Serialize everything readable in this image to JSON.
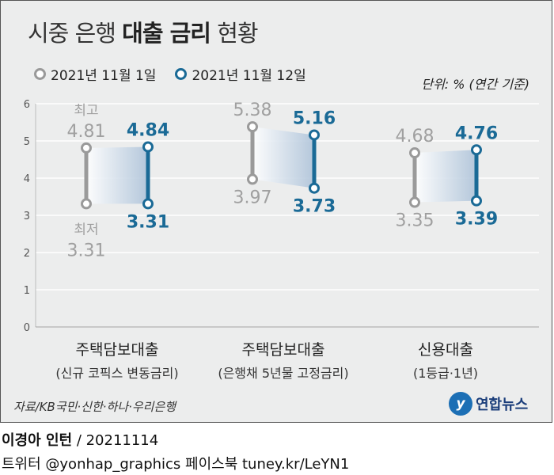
{
  "title": {
    "light_prefix": "시중 은행",
    "bold": "대출 금리",
    "light_suffix": "현황"
  },
  "legend": [
    {
      "label": "2021년 11월 1일",
      "color": "#9a9a9a"
    },
    {
      "label": "2021년 11월 12일",
      "color": "#1a6a96"
    }
  ],
  "unit": "단위: % (연간 기준)",
  "chart_data": {
    "type": "dumbbell",
    "ylim": [
      0,
      6
    ],
    "yticks": [
      "0",
      "1",
      "2",
      "3",
      "4",
      "5",
      "6"
    ],
    "categories": [
      {
        "name": "주택담보대출",
        "sub": "(신규 코픽스 변동금리)"
      },
      {
        "name": "주택담보대출",
        "sub": "(은행채 5년물 고정금리)"
      },
      {
        "name": "신용대출",
        "sub": "(1등급·1년)"
      }
    ],
    "series": [
      {
        "name": "2021년 11월 1일",
        "color": "#9a9a9a",
        "high": [
          4.81,
          5.38,
          4.68
        ],
        "low": [
          3.31,
          3.97,
          3.35
        ]
      },
      {
        "name": "2021년 11월 12일",
        "color": "#1a6a96",
        "high": [
          4.84,
          5.16,
          4.76
        ],
        "low": [
          3.31,
          3.73,
          3.39
        ]
      }
    ],
    "annotations": {
      "high": "최고",
      "low": "최저"
    }
  },
  "source": "자료/KB국민·신한·하나·우리은행",
  "logo": {
    "mark": "y",
    "text": "연합뉴스"
  },
  "credit": {
    "name": "이경아 인턴",
    "date": "/ 20211114"
  },
  "social": "트위터 @yonhap_graphics  페이스북 tuney.kr/LeYN1"
}
